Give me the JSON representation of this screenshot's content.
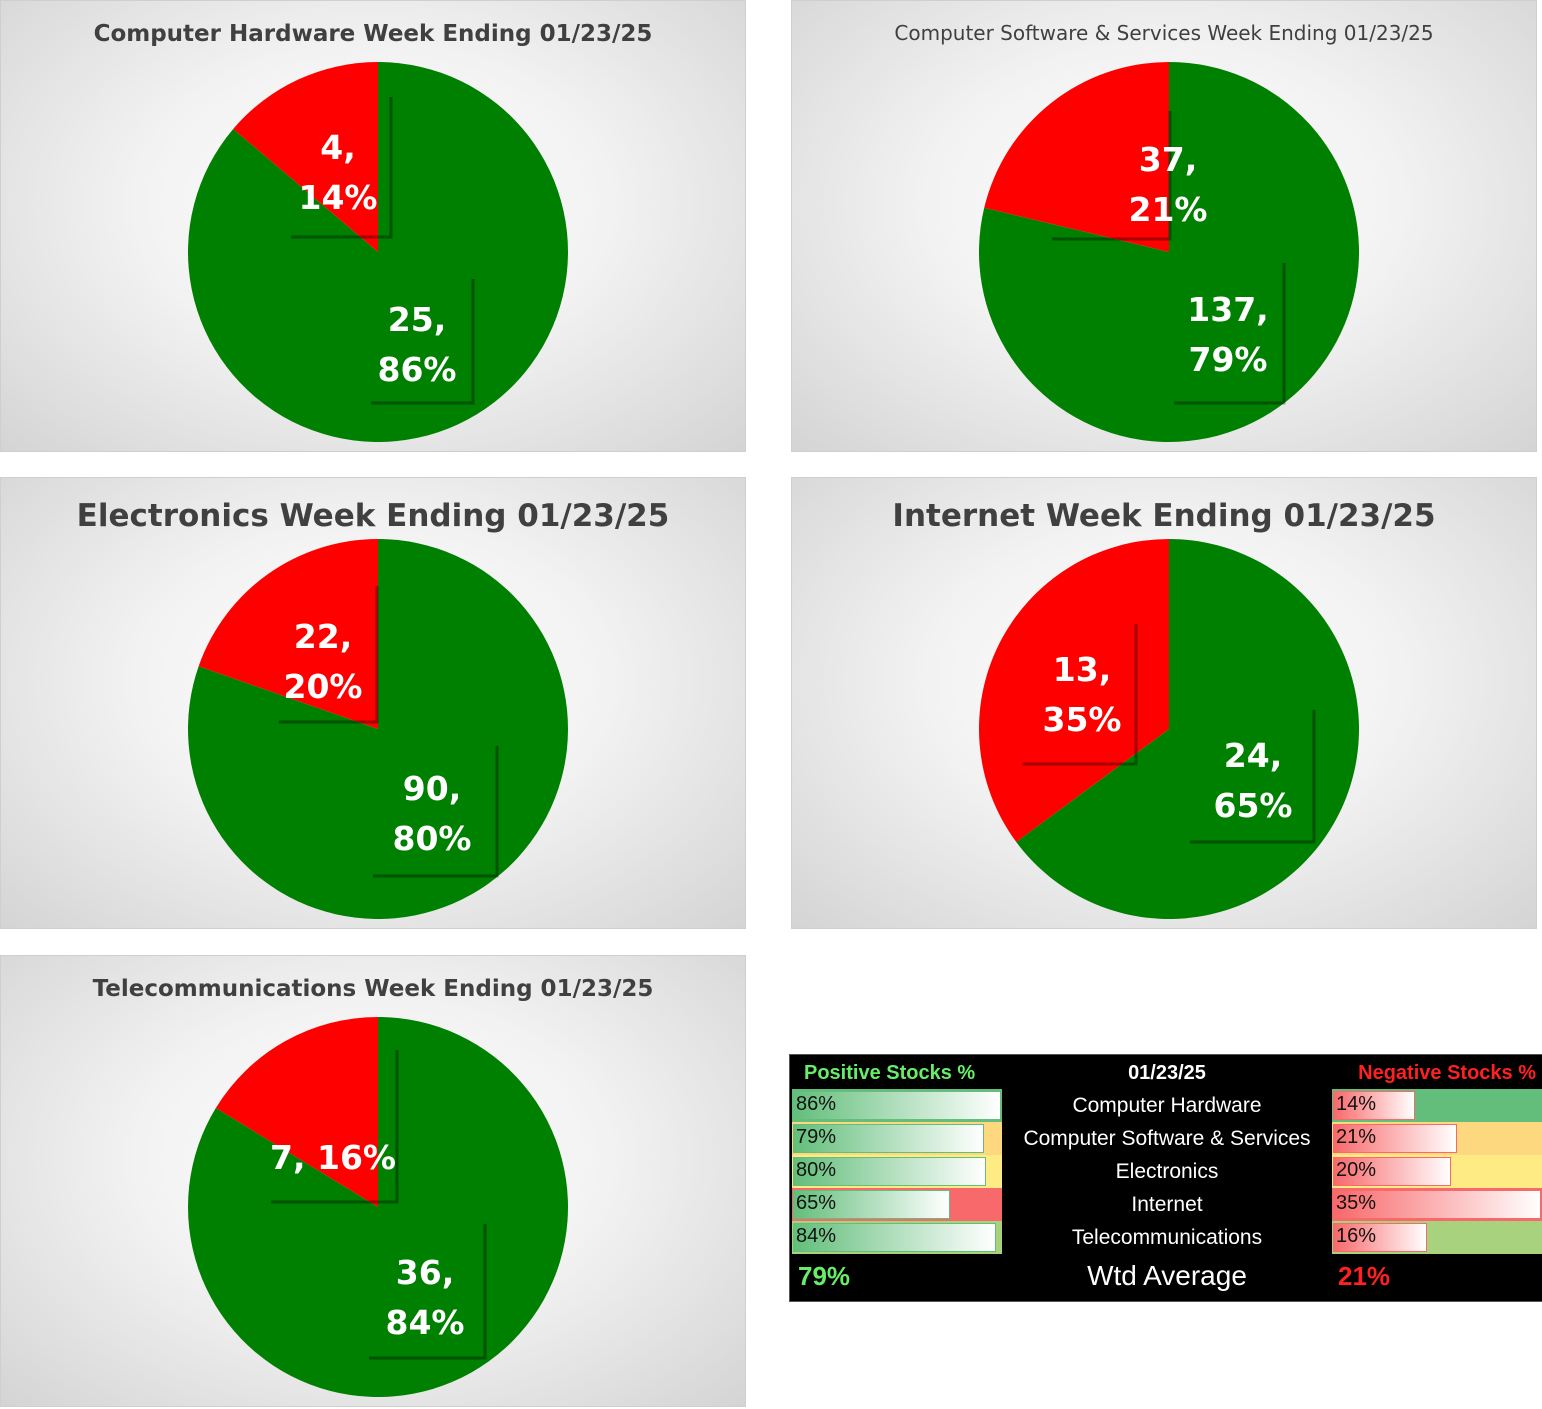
{
  "colors": {
    "positive": "#008000",
    "negative": "#ff0000"
  },
  "chart_data": [
    {
      "type": "pie",
      "title": "Computer Hardware Week Ending 01/23/25",
      "slices": [
        {
          "name": "Negative",
          "value": 4,
          "percent": 14,
          "label": "4,\n14%"
        },
        {
          "name": "Positive",
          "value": 25,
          "percent": 86,
          "label": "25,\n86%"
        }
      ]
    },
    {
      "type": "pie",
      "title": "Computer Software & Services Week Ending 01/23/25",
      "slices": [
        {
          "name": "Negative",
          "value": 37,
          "percent": 21,
          "label": "37,\n21%"
        },
        {
          "name": "Positive",
          "value": 137,
          "percent": 79,
          "label": "137,\n79%"
        }
      ]
    },
    {
      "type": "pie",
      "title": "Electronics Week Ending 01/23/25",
      "slices": [
        {
          "name": "Negative",
          "value": 22,
          "percent": 20,
          "label": "22,\n20%"
        },
        {
          "name": "Positive",
          "value": 90,
          "percent": 80,
          "label": "90,\n80%"
        }
      ]
    },
    {
      "type": "pie",
      "title": "Internet Week Ending 01/23/25",
      "slices": [
        {
          "name": "Negative",
          "value": 13,
          "percent": 35,
          "label": "13,\n35%"
        },
        {
          "name": "Positive",
          "value": 24,
          "percent": 65,
          "label": "24,\n65%"
        }
      ]
    },
    {
      "type": "pie",
      "title": "Telecommunications Week Ending 01/23/25",
      "slices": [
        {
          "name": "Negative",
          "value": 7,
          "percent": 16,
          "label": "7, 16%"
        },
        {
          "name": "Positive",
          "value": 36,
          "percent": 84,
          "label": "36,\n84%"
        }
      ]
    }
  ],
  "summary": {
    "header": {
      "positive": "Positive Stocks %",
      "date": "01/23/25",
      "negative": "Negative Stocks %"
    },
    "rows": [
      {
        "name": "Computer Hardware",
        "pos": "86%",
        "pos_value": 0.86,
        "neg": "14%",
        "neg_value": 0.14,
        "fill": "#63be7b"
      },
      {
        "name": "Computer Software & Services",
        "pos": "79%",
        "pos_value": 0.79,
        "neg": "21%",
        "neg_value": 0.21,
        "fill": "#fdd87f"
      },
      {
        "name": "Electronics",
        "pos": "80%",
        "pos_value": 0.8,
        "neg": "20%",
        "neg_value": 0.2,
        "fill": "#ffeb84"
      },
      {
        "name": "Internet",
        "pos": "65%",
        "pos_value": 0.65,
        "neg": "35%",
        "neg_value": 0.35,
        "fill": "#f8696b"
      },
      {
        "name": "Telecommunications",
        "pos": "84%",
        "pos_value": 0.84,
        "neg": "16%",
        "neg_value": 0.16,
        "fill": "#a9d27f"
      }
    ],
    "total": {
      "label": "Wtd Average",
      "pos": "79%",
      "neg": "21%"
    }
  }
}
